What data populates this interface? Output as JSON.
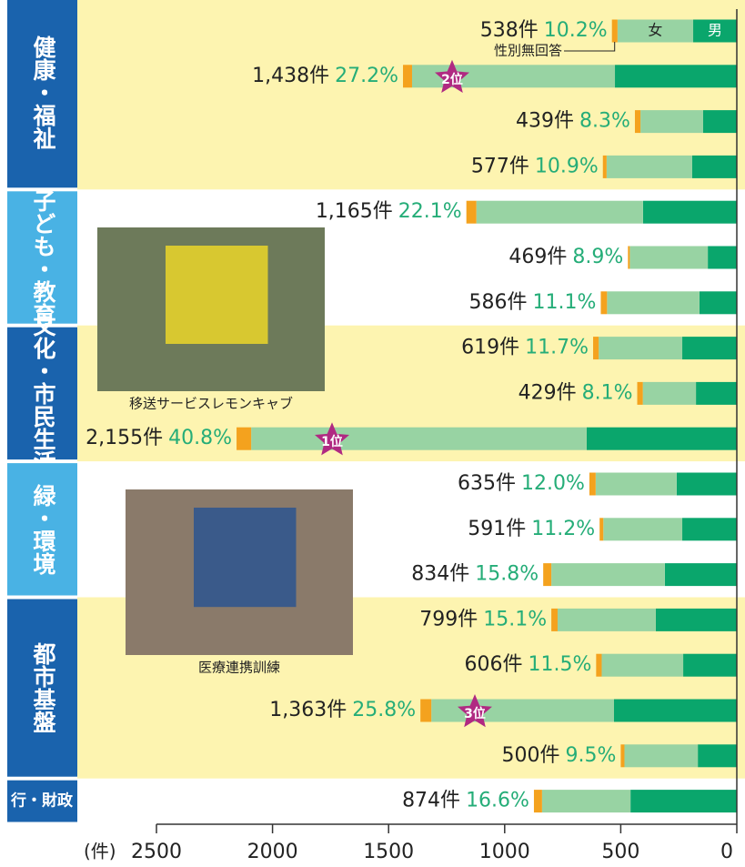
{
  "chart_data": {
    "type": "bar",
    "orientation": "horizontal",
    "xlabel": "(件)",
    "xlim": [
      2500,
      0
    ],
    "xticks": [
      2500,
      2000,
      1500,
      1000,
      500,
      0
    ],
    "groups": [
      {
        "label": "健康・福祉",
        "rows": 4
      },
      {
        "label": "子ども・教育",
        "rows": 3
      },
      {
        "label": "文化・市民生活",
        "rows": 3
      },
      {
        "label": "緑・環境",
        "rows": 3
      },
      {
        "label": "都市基盤",
        "rows": 4
      },
      {
        "label": "行・財政",
        "rows": 1
      }
    ],
    "series": [
      {
        "name": "男",
        "color": "#0aa66c",
        "values": [
          188,
          525,
          145,
          192,
          404,
          125,
          161,
          235,
          176,
          647,
          259,
          235,
          310,
          349,
          231,
          529,
          168,
          458
        ]
      },
      {
        "name": "女",
        "color": "#98d3a3",
        "values": [
          326,
          874,
          270,
          369,
          718,
          336,
          398,
          360,
          229,
          1445,
          349,
          340,
          489,
          423,
          351,
          787,
          316,
          381
        ]
      },
      {
        "name": "性別無回答",
        "color": "#f4a21e",
        "values": [
          24,
          39,
          24,
          16,
          43,
          8,
          27,
          24,
          24,
          63,
          27,
          16,
          35,
          27,
          24,
          47,
          16,
          35
        ]
      }
    ],
    "counts": {
      "values": [
        538,
        1438,
        439,
        577,
        1165,
        469,
        586,
        619,
        429,
        2155,
        635,
        591,
        834,
        799,
        606,
        1363,
        500,
        874
      ],
      "value_labels": [
        "538件",
        "1,438件",
        "439件",
        "577件",
        "1,165件",
        "469件",
        "586件",
        "619件",
        "429件",
        "2,155件",
        "635件",
        "591件",
        "834件",
        "799件",
        "606件",
        "1,363件",
        "500件",
        "874件"
      ]
    },
    "shares": {
      "values": [
        10.2,
        27.2,
        8.3,
        10.9,
        22.1,
        8.9,
        11.1,
        11.7,
        8.1,
        40.8,
        12.0,
        11.2,
        15.8,
        15.1,
        11.5,
        25.8,
        9.5,
        16.6
      ],
      "value_labels": [
        "10.2%",
        "27.2%",
        "8.3%",
        "10.9%",
        "22.1%",
        "8.9%",
        "11.1%",
        "11.7%",
        "8.1%",
        "40.8%",
        "12.0%",
        "11.2%",
        "15.8%",
        "15.1%",
        "11.5%",
        "25.8%",
        "9.5%",
        "16.6%"
      ]
    },
    "ranks": [
      {
        "label": "2位",
        "row": 1
      },
      {
        "label": "1位",
        "row": 9
      },
      {
        "label": "3位",
        "row": 15
      }
    ],
    "photos": [
      {
        "caption": "移送サービスレモンキャブ"
      },
      {
        "caption": "医療連携訓練"
      }
    ]
  }
}
